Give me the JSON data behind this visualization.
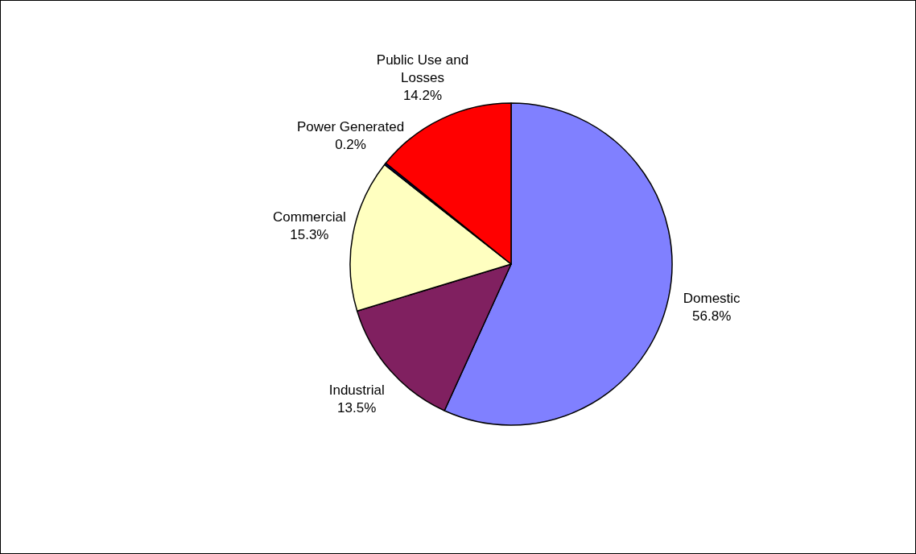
{
  "chart_data": {
    "type": "pie",
    "categories": [
      "Domestic",
      "Industrial",
      "Commercial",
      "Power Generated",
      "Public Use and Losses"
    ],
    "values": [
      56.8,
      13.5,
      15.3,
      0.2,
      14.2
    ],
    "colors": [
      "#8080ff",
      "#802060",
      "#ffffc0",
      "#000080",
      "#ff0000"
    ],
    "value_labels": [
      "56.8%",
      "13.5%",
      "15.3%",
      "0.2%",
      "14.2%"
    ]
  }
}
